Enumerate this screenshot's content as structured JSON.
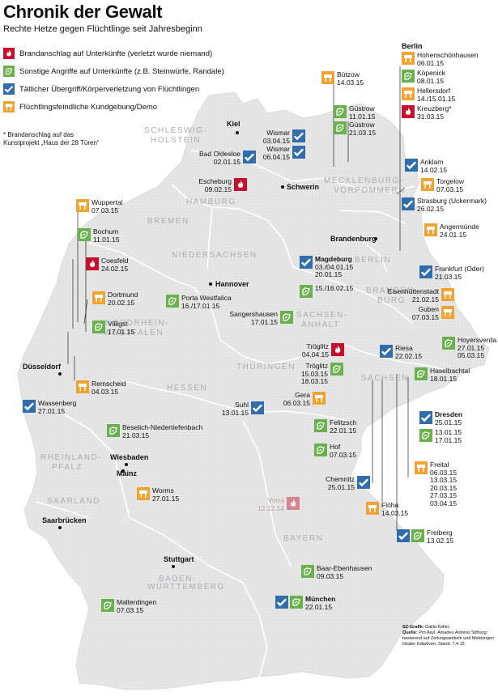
{
  "title": "Chronik der Gewalt",
  "subtitle": "Rechte Hetze gegen Flüchtlinge seit Jahresbeginn",
  "colors": {
    "arson": "#c8102e",
    "attack": "#6ab04c",
    "assault": "#2f6dab",
    "demo": "#f2a230",
    "map_fill": "#e4e4e4",
    "border": "#ffffff",
    "region_text": "#a9aeb5"
  },
  "legend": [
    {
      "type": "arson",
      "icon": "flame-icon",
      "label": "Brandanschlag auf Unterkünfte (verletzt wurde niemand)"
    },
    {
      "type": "attack",
      "icon": "stone-icon",
      "label": "Sonstige Angriffe auf Unterkünfte (z.B. Steinwürfe, Randale)"
    },
    {
      "type": "assault",
      "icon": "fist-icon",
      "label": "Tätlicher Übergriff/Körperverletzung von Flüchtlingen"
    },
    {
      "type": "demo",
      "icon": "banner-icon",
      "label": "Flüchtlingsfeindliche Kundgebung/Demo"
    }
  ],
  "note": [
    "* Brandanschlag auf das",
    "Kunstprojekt „Haus der 28 Türen“"
  ],
  "credit": {
    "line1_bold": "SZ-Grafik:",
    "line1": "Dalila Keller;",
    "line2_bold": "Quelle:",
    "line2": "Pro Asyl, Amadeu Antonio Stiftung;",
    "line3": "basierend auf Zeitungsartikeln und Meldungen",
    "line4": "lokaler Initiativen; Stand: 7.4.15"
  },
  "regions": [
    "SCHLESWIG-",
    "HOLSTEIN",
    "HAMBURG",
    "BREMEN",
    "MECKLENBURG-",
    "VORPOMMERN",
    "NIEDERSACHSEN",
    "BERLIN",
    "SACHSEN-",
    "ANHALT",
    "BRANDEN-",
    "BURG",
    "NORDRHEIN-",
    "WESTFALEN",
    "HESSEN",
    "THÜRINGEN",
    "SACHSEN",
    "RHEINLAND-",
    "PFALZ",
    "SAARLAND",
    "BAYERN",
    "BADEN-",
    "WÜRTTEMBERG"
  ],
  "cities": [
    "Kiel",
    "Schwerin",
    "Brandenburg",
    "Hannover",
    "Düsseldorf",
    "Wiesbaden",
    "Mainz",
    "Saarbrücken",
    "Stuttgart"
  ],
  "berlin": {
    "heading": "Berlin",
    "events": [
      {
        "type": "demo",
        "name": "Hohenschönhausen",
        "dates": [
          "06.01.15"
        ]
      },
      {
        "type": "attack",
        "name": "Köpenick",
        "dates": [
          "08.01.15"
        ]
      },
      {
        "type": "demo",
        "name": "Hellersdorf",
        "dates": [
          "14./15.01.15"
        ]
      },
      {
        "type": "arson",
        "name": "Kreuzberg*",
        "dates": [
          "31.03.15"
        ]
      }
    ]
  },
  "events": [
    {
      "types": [
        "demo"
      ],
      "name": "Bützow",
      "dates": [
        "14.03.15"
      ]
    },
    {
      "types": [
        "attack"
      ],
      "name": "Güstrow",
      "dates": [
        "11.01.15"
      ]
    },
    {
      "types": [
        "attack"
      ],
      "name": "Güstrow",
      "dates": [
        "21.03.15"
      ]
    },
    {
      "types": [
        "assault"
      ],
      "name": "Wismar",
      "dates": [
        "03.04.15"
      ]
    },
    {
      "types": [
        "assault"
      ],
      "name": "Wismar",
      "dates": [
        "06.04.15"
      ]
    },
    {
      "types": [
        "assault"
      ],
      "name": "Bad Oldesloe",
      "dates": [
        "02.01.15"
      ]
    },
    {
      "types": [
        "arson"
      ],
      "name": "Escheburg",
      "dates": [
        "09.02.15"
      ]
    },
    {
      "types": [
        "assault"
      ],
      "name": "Anklam",
      "dates": [
        "14.02.15"
      ]
    },
    {
      "types": [
        "demo"
      ],
      "name": "Torgelow",
      "dates": [
        "07.03.15"
      ]
    },
    {
      "types": [
        "assault"
      ],
      "name": "Strasburg (Uckermark)",
      "dates": [
        "26.02.15"
      ]
    },
    {
      "types": [
        "demo"
      ],
      "name": "Angermünde",
      "dates": [
        "24.01.15"
      ]
    },
    {
      "types": [
        "demo"
      ],
      "name": "Wuppertal",
      "dates": [
        "07.03.15"
      ]
    },
    {
      "types": [
        "attack"
      ],
      "name": "Bochum",
      "dates": [
        "11.01.15"
      ]
    },
    {
      "types": [
        "arson"
      ],
      "name": "Coesfeld",
      "dates": [
        "24.02.15"
      ]
    },
    {
      "types": [
        "demo"
      ],
      "name": "Dortmund",
      "dates": [
        "20.02.15"
      ]
    },
    {
      "types": [
        "attack"
      ],
      "name": "Villigst",
      "dates": [
        "17.01.15"
      ]
    },
    {
      "types": [
        "demo"
      ],
      "name": "Remscheid",
      "dates": [
        "04.03.15"
      ]
    },
    {
      "types": [
        "assault"
      ],
      "name": "Wassenberg",
      "dates": [
        "27.01.15"
      ]
    },
    {
      "types": [
        "attack"
      ],
      "name": "Porta Westfalica",
      "dates": [
        "16./17.01.15"
      ]
    },
    {
      "types": [
        "assault"
      ],
      "name": "Magdeburg",
      "dates": [
        "03./04.01.15",
        "20.01.15"
      ],
      "bold": true
    },
    {
      "types": [
        "attack"
      ],
      "name": "",
      "dates": [
        "15./16.02.15"
      ]
    },
    {
      "types": [
        "assault"
      ],
      "name": "Frankfurt (Oder)",
      "dates": [
        "21.03.15"
      ]
    },
    {
      "types": [
        "demo"
      ],
      "name": "Eisenhüttenstadt",
      "dates": [
        "21.02.15"
      ]
    },
    {
      "types": [
        "demo"
      ],
      "name": "Guben",
      "dates": [
        "07.03.15"
      ]
    },
    {
      "types": [
        "attack"
      ],
      "name": "Sangershausen",
      "dates": [
        "17.01.15"
      ]
    },
    {
      "types": [
        "arson"
      ],
      "name": "Tröglitz",
      "dates": [
        "04.04.15"
      ]
    },
    {
      "types": [
        "attack"
      ],
      "name": "Tröglitz",
      "dates": [
        "15.03.15",
        "18.03.15"
      ]
    },
    {
      "types": [
        "assault"
      ],
      "name": "Riesa",
      "dates": [
        "22.02.15"
      ]
    },
    {
      "types": [
        "attack"
      ],
      "name": "Hoyersverda",
      "dates": [
        "27.01.15",
        "05.03.15"
      ]
    },
    {
      "types": [
        "attack"
      ],
      "name": "Haselbachtal",
      "dates": [
        "18.01.15"
      ]
    },
    {
      "types": [
        "demo"
      ],
      "name": "Gera",
      "dates": [
        "06.03.15"
      ]
    },
    {
      "types": [
        "assault"
      ],
      "name": "Suhl",
      "dates": [
        "13.01.15"
      ]
    },
    {
      "types": [
        "assault"
      ],
      "name": "Dresden",
      "dates": [
        "25.01.15"
      ],
      "bold": true
    },
    {
      "types": [
        "attack"
      ],
      "name": "",
      "dates": [
        "13.01.15",
        "17.01.15"
      ]
    },
    {
      "types": [
        "attack"
      ],
      "name": "Felitzsch",
      "dates": [
        "22.01.15"
      ]
    },
    {
      "types": [
        "attack"
      ],
      "name": "Hof",
      "dates": [
        "07.03.15"
      ]
    },
    {
      "types": [
        "demo"
      ],
      "name": "Freital",
      "dates": [
        "06.03.15",
        "13.03.15",
        "20.03.15",
        "27.03.15",
        "03.04.15"
      ]
    },
    {
      "types": [
        "attack"
      ],
      "name": "Beselich-Niedertiefenbach",
      "dates": [
        "21.03.15"
      ]
    },
    {
      "types": [
        "assault"
      ],
      "name": "Chemnitz",
      "dates": [
        "25.01.15"
      ]
    },
    {
      "types": [
        "demo"
      ],
      "name": "Flöha",
      "dates": [
        "14.03.15"
      ]
    },
    {
      "types": [
        "arson"
      ],
      "name": "Vorra",
      "dates": [
        "12.12.14"
      ],
      "faded": true
    },
    {
      "types": [
        "demo"
      ],
      "name": "Worms",
      "dates": [
        "27.01.15"
      ]
    },
    {
      "types": [
        "assault",
        "attack"
      ],
      "name": "Freiberg",
      "dates": [
        "13.02.15"
      ]
    },
    {
      "types": [
        "attack"
      ],
      "name": "Baar-Ebenhausen",
      "dates": [
        "09.03.15"
      ]
    },
    {
      "types": [
        "assault",
        "attack"
      ],
      "name": "München",
      "dates": [
        "22.01.15"
      ],
      "bold": true
    },
    {
      "types": [
        "attack"
      ],
      "name": "Malterdingen",
      "dates": [
        "07.03.15"
      ]
    }
  ]
}
